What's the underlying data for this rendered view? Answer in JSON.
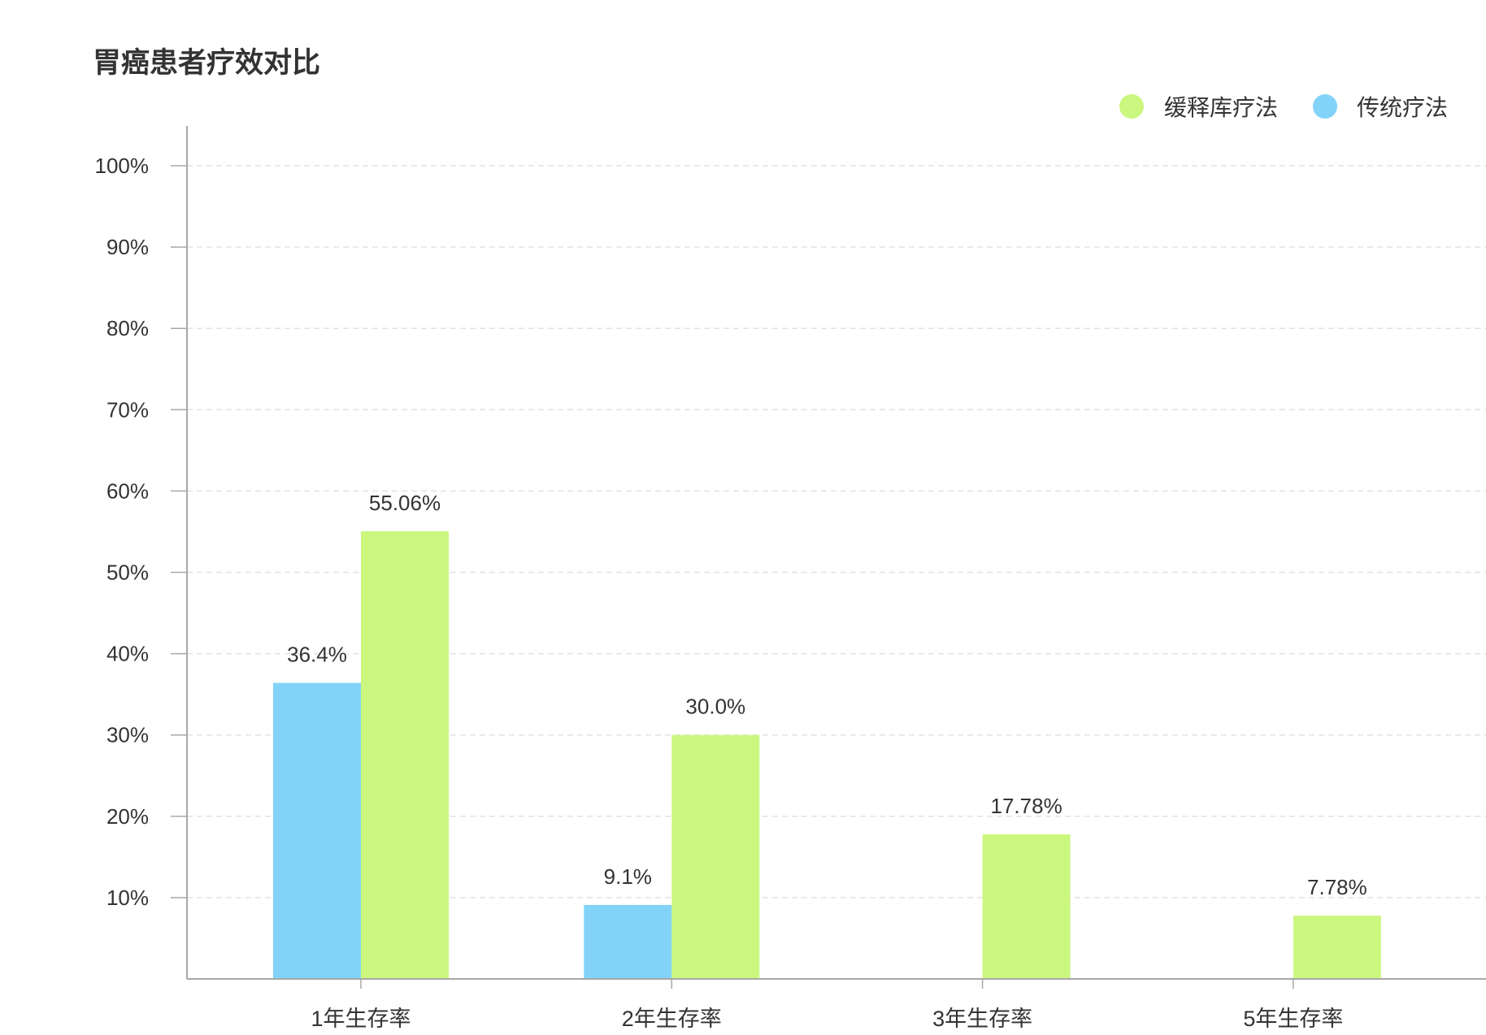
{
  "chart_data": {
    "type": "bar",
    "title": "胃癌患者疗效对比",
    "categories": [
      "1年生存率",
      "2年生存率",
      "3年生存率",
      "5年生存率"
    ],
    "series": [
      {
        "name": "传统疗法",
        "color": "#82D3F7",
        "values": [
          36.4,
          9.1,
          null,
          null
        ],
        "labels": [
          "36.4%",
          "9.1%",
          null,
          null
        ]
      },
      {
        "name": "缓释库疗法",
        "color": "#CBF77F",
        "values": [
          55.06,
          30.0,
          17.78,
          7.78
        ],
        "labels": [
          "55.06%",
          "30.0%",
          "17.78%",
          "7.78%"
        ]
      }
    ],
    "ylim": [
      0,
      100
    ],
    "yticks": [
      {
        "value": 10,
        "label": "10%"
      },
      {
        "value": 20,
        "label": "20%"
      },
      {
        "value": 30,
        "label": "30%"
      },
      {
        "value": 40,
        "label": "40%"
      },
      {
        "value": 50,
        "label": "50%"
      },
      {
        "value": 60,
        "label": "60%"
      },
      {
        "value": 70,
        "label": "70%"
      },
      {
        "value": 80,
        "label": "80%"
      },
      {
        "value": 90,
        "label": "90%"
      },
      {
        "value": 100,
        "label": "100%"
      }
    ],
    "grid": true,
    "grid_style": "dashed",
    "legend": {
      "position": "top-right",
      "marker": "circle",
      "reversed": true
    }
  }
}
